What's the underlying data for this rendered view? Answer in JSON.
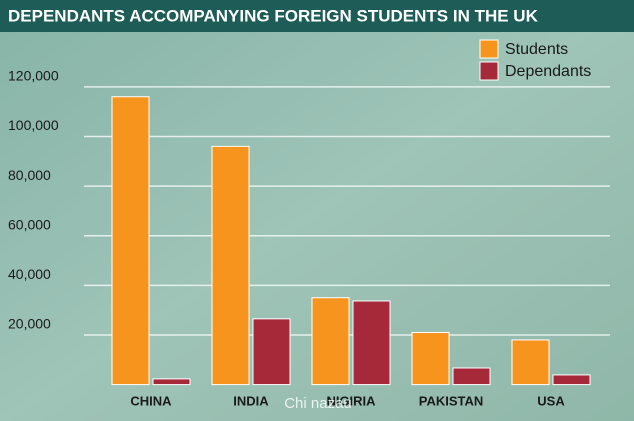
{
  "chart_data": {
    "type": "bar",
    "title": "DEPENDANTS ACCOMPANYING FOREIGN STUDENTS IN THE UK",
    "categories": [
      "CHINA",
      "INDIA",
      "NIGIRIA",
      "PAKISTAN",
      "USA"
    ],
    "series": [
      {
        "name": "Students",
        "color": "#f7941d",
        "values": [
          116000,
          96000,
          35000,
          21000,
          18000
        ]
      },
      {
        "name": "Dependants",
        "color": "#a6293a",
        "values": [
          2300,
          26500,
          33700,
          6700,
          3900
        ]
      }
    ],
    "ylim": [
      0,
      130000
    ],
    "yticks": [
      {
        "value": 20000,
        "label": "20,000"
      },
      {
        "value": 40000,
        "label": "40,000"
      },
      {
        "value": 60000,
        "label": "60,000"
      },
      {
        "value": 80000,
        "label": "80,000"
      },
      {
        "value": 100000,
        "label": "100,000"
      },
      {
        "value": 120000,
        "label": "120,000"
      }
    ],
    "grid": true,
    "legend": "top-right",
    "watermark": "Chi nazau"
  }
}
